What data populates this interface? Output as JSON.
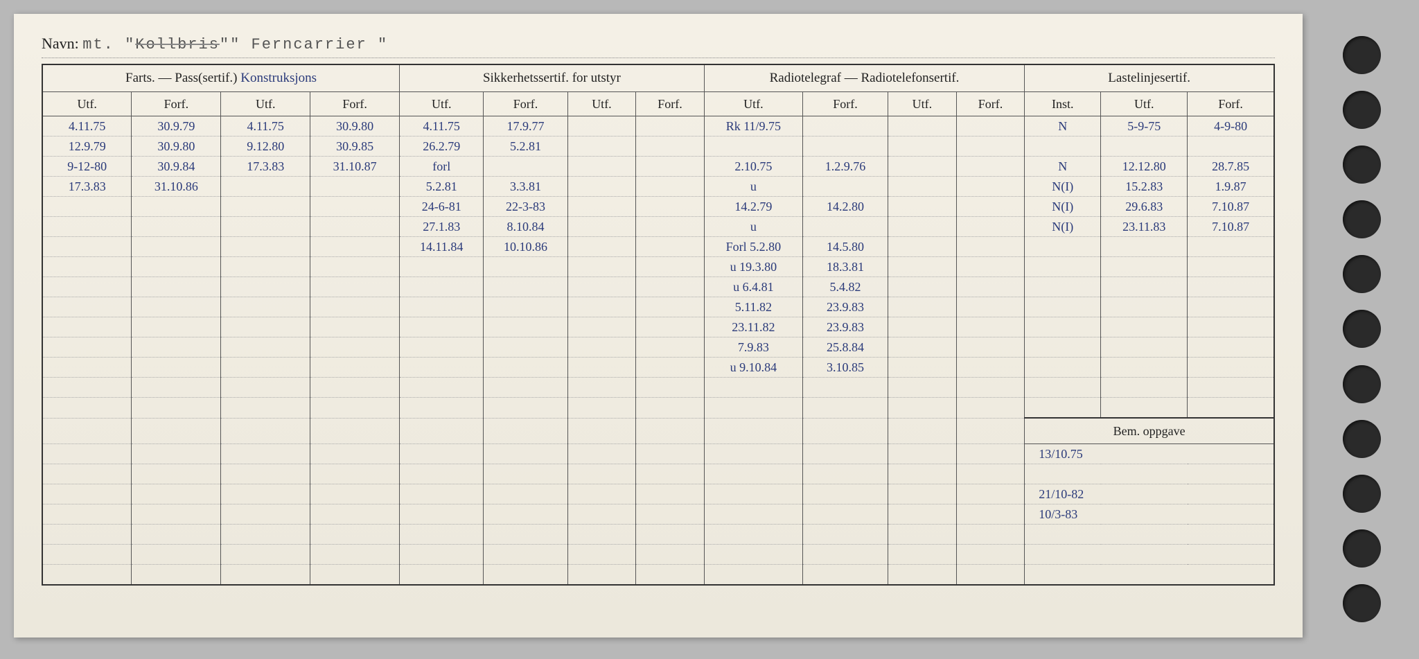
{
  "navn": {
    "label": "Navn:",
    "typed_prefix": "mt. \"",
    "struck": "Kollbris",
    "typed_mid": "\"\" ",
    "name2": "Ferncarrier",
    "typed_suffix": " \""
  },
  "headers": {
    "farts": "Farts. — Pass(sertif.)",
    "farts_annot": "Konstruksjons",
    "sikker": "Sikkerhetssertif. for utstyr",
    "radio": "Radiotelegraf — Radiotelefonsertif.",
    "laste": "Lastelinjesertif.",
    "utf": "Utf.",
    "forf": "Forf.",
    "inst": "Inst.",
    "bem": "Bem. oppgave"
  },
  "rows": [
    {
      "c0": "4.11.75",
      "c1": "30.9.79",
      "c2": "4.11.75",
      "c3": "30.9.80",
      "c4": "4.11.75",
      "c5": "17.9.77",
      "c6": "",
      "c7": "",
      "c8": "Rk 11/9.75",
      "c9": "",
      "c10": "",
      "c11": "",
      "c12": "N",
      "c13": "5-9-75",
      "c14": "4-9-80"
    },
    {
      "c0": "12.9.79",
      "c1": "30.9.80",
      "c2": "9.12.80",
      "c3": "30.9.85",
      "c4": "26.2.79",
      "c5": "5.2.81",
      "c6": "",
      "c7": "",
      "c8": "",
      "c9": "",
      "c10": "",
      "c11": "",
      "c12": "",
      "c13": "",
      "c14": ""
    },
    {
      "c0": "9-12-80",
      "c1": "30.9.84",
      "c2": "17.3.83",
      "c3": "31.10.87",
      "c4": "forl",
      "c5": "",
      "c6": "",
      "c7": "",
      "c8": "2.10.75",
      "c9": "1.2.9.76",
      "c10": "",
      "c11": "",
      "c12": "N",
      "c13": "12.12.80",
      "c14": "28.7.85"
    },
    {
      "c0": "17.3.83",
      "c1": "31.10.86",
      "c2": "",
      "c3": "",
      "c4": "5.2.81",
      "c5": "3.3.81",
      "c6": "",
      "c7": "",
      "c8": "u",
      "c9": "",
      "c10": "",
      "c11": "",
      "c12": "N(I)",
      "c13": "15.2.83",
      "c14": "1.9.87"
    },
    {
      "c0": "",
      "c1": "",
      "c2": "",
      "c3": "",
      "c4": "24-6-81",
      "c5": "22-3-83",
      "c6": "",
      "c7": "",
      "c8": "14.2.79",
      "c9": "14.2.80",
      "c10": "",
      "c11": "",
      "c12": "N(I)",
      "c13": "29.6.83",
      "c14": "7.10.87"
    },
    {
      "c0": "",
      "c1": "",
      "c2": "",
      "c3": "",
      "c4": "27.1.83",
      "c5": "8.10.84",
      "c6": "",
      "c7": "",
      "c8": "u",
      "c9": "",
      "c10": "",
      "c11": "",
      "c12": "N(I)",
      "c13": "23.11.83",
      "c14": "7.10.87"
    },
    {
      "c0": "",
      "c1": "",
      "c2": "",
      "c3": "",
      "c4": "14.11.84",
      "c5": "10.10.86",
      "c6": "",
      "c7": "",
      "c8": "Forl 5.2.80",
      "c9": "14.5.80",
      "c10": "",
      "c11": "",
      "c12": "",
      "c13": "",
      "c14": ""
    },
    {
      "c0": "",
      "c1": "",
      "c2": "",
      "c3": "",
      "c4": "",
      "c5": "",
      "c6": "",
      "c7": "",
      "c8": "u 19.3.80",
      "c9": "18.3.81",
      "c10": "",
      "c11": "",
      "c12": "",
      "c13": "",
      "c14": ""
    },
    {
      "c0": "",
      "c1": "",
      "c2": "",
      "c3": "",
      "c4": "",
      "c5": "",
      "c6": "",
      "c7": "",
      "c8": "u 6.4.81",
      "c9": "5.4.82",
      "c10": "",
      "c11": "",
      "c12": "",
      "c13": "",
      "c14": ""
    },
    {
      "c0": "",
      "c1": "",
      "c2": "",
      "c3": "",
      "c4": "",
      "c5": "",
      "c6": "",
      "c7": "",
      "c8": "5.11.82",
      "c9": "23.9.83",
      "c10": "",
      "c11": "",
      "c12": "",
      "c13": "",
      "c14": ""
    },
    {
      "c0": "",
      "c1": "",
      "c2": "",
      "c3": "",
      "c4": "",
      "c5": "",
      "c6": "",
      "c7": "",
      "c8": "23.11.82",
      "c9": "23.9.83",
      "c10": "",
      "c11": "",
      "c12": "",
      "c13": "",
      "c14": ""
    },
    {
      "c0": "",
      "c1": "",
      "c2": "",
      "c3": "",
      "c4": "",
      "c5": "",
      "c6": "",
      "c7": "",
      "c8": "7.9.83",
      "c9": "25.8.84",
      "c10": "",
      "c11": "",
      "c12": "",
      "c13": "",
      "c14": ""
    },
    {
      "c0": "",
      "c1": "",
      "c2": "",
      "c3": "",
      "c4": "",
      "c5": "",
      "c6": "",
      "c7": "",
      "c8": "u 9.10.84",
      "c9": "3.10.85",
      "c10": "",
      "c11": "",
      "c12": "",
      "c13": "",
      "c14": ""
    },
    {
      "c0": "",
      "c1": "",
      "c2": "",
      "c3": "",
      "c4": "",
      "c5": "",
      "c6": "",
      "c7": "",
      "c8": "",
      "c9": "",
      "c10": "",
      "c11": "",
      "c12": "",
      "c13": "",
      "c14": ""
    },
    {
      "c0": "",
      "c1": "",
      "c2": "",
      "c3": "",
      "c4": "",
      "c5": "",
      "c6": "",
      "c7": "",
      "c8": "",
      "c9": "",
      "c10": "",
      "c11": "",
      "c12": "",
      "c13": "",
      "c14": ""
    }
  ],
  "bem_rows": [
    "13/10.75",
    "",
    "21/10-82",
    "10/3-83",
    "",
    "",
    ""
  ],
  "colors": {
    "ink": "#2a3a7a",
    "paper": "#f0ece0",
    "line": "#555"
  }
}
